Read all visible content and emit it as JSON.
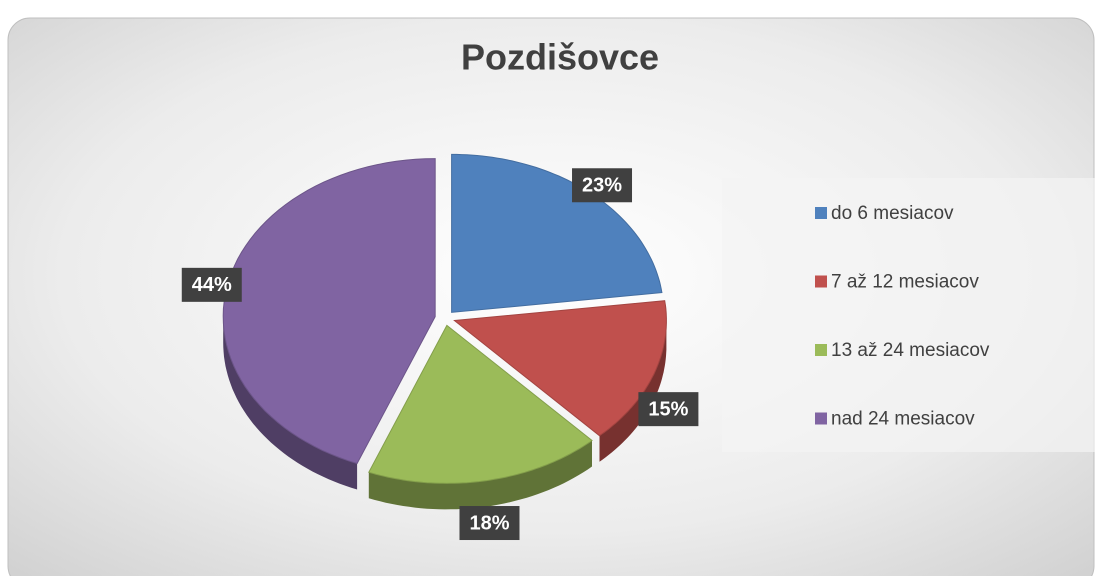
{
  "chart_data": {
    "type": "pie",
    "title": "Pozdišovce",
    "categories": [
      "do 6 mesiacov",
      "7 až 12 mesiacov",
      "13 až 24 mesiacov",
      "nad 24 mesiacov"
    ],
    "values": [
      23,
      15,
      18,
      44
    ],
    "value_labels": [
      "23%",
      "15%",
      "18%",
      "44%"
    ],
    "colors": [
      "#4f81bd",
      "#c0504d",
      "#9bbb59",
      "#8064a2"
    ],
    "legend": "right"
  }
}
